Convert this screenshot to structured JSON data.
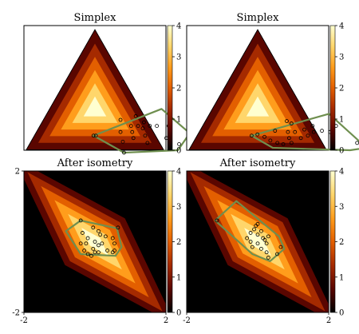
{
  "colormap": [
    "#000000",
    "#5a0600",
    "#a52a00",
    "#e35f00",
    "#ff9d1c",
    "#ffd66b",
    "#ffffd0"
  ],
  "hull_color": "#6f8f4f",
  "point_color": "#000000",
  "chart_data": [
    {
      "type": "heatmap",
      "title": "Simplex",
      "projection": "simplex",
      "value_range": [
        0,
        4
      ],
      "colorbar_ticks": [
        "0",
        "1",
        "2",
        "3",
        "4"
      ],
      "points": [
        [
          0.12,
          0.68
        ],
        [
          0.18,
          0.72
        ],
        [
          0.26,
          0.62
        ],
        [
          0.3,
          0.55
        ],
        [
          0.42,
          0.6
        ],
        [
          0.22,
          0.5
        ],
        [
          0.15,
          0.8
        ],
        [
          0.25,
          0.55
        ],
        [
          0.35,
          0.5
        ],
        [
          0.28,
          0.66
        ],
        [
          0.2,
          0.6
        ],
        [
          0.32,
          0.58
        ],
        [
          0.48,
          0.4
        ],
        [
          0.47,
          0.41
        ],
        [
          0.28,
          0.52
        ],
        [
          0.17,
          0.63
        ],
        [
          0.24,
          0.58
        ],
        [
          0.38,
          0.55
        ],
        [
          0.21,
          0.56
        ],
        [
          0.3,
          0.45
        ]
      ],
      "hull": [
        [
          0.48,
          0.4
        ],
        [
          0.08,
          0.58
        ],
        [
          0.06,
          0.8
        ],
        [
          0.18,
          0.82
        ],
        [
          0.42,
          0.6
        ]
      ]
    },
    {
      "type": "heatmap",
      "title": "Simplex",
      "projection": "simplex",
      "value_range": [
        0,
        4
      ],
      "colorbar_ticks": [
        "0",
        "1",
        "2",
        "3",
        "4"
      ],
      "points": [
        [
          0.1,
          0.7
        ],
        [
          0.42,
          0.52
        ],
        [
          0.3,
          0.6
        ],
        [
          0.35,
          0.55
        ],
        [
          0.18,
          0.66
        ],
        [
          0.25,
          0.58
        ],
        [
          0.45,
          0.44
        ],
        [
          0.5,
          0.38
        ],
        [
          0.28,
          0.5
        ],
        [
          0.4,
          0.55
        ],
        [
          0.22,
          0.63
        ],
        [
          0.47,
          0.4
        ],
        [
          0.38,
          0.46
        ],
        [
          0.3,
          0.55
        ],
        [
          0.2,
          0.6
        ],
        [
          0.44,
          0.48
        ],
        [
          0.33,
          0.52
        ],
        [
          0.26,
          0.62
        ],
        [
          0.36,
          0.58
        ],
        [
          0.29,
          0.47
        ],
        [
          0.15,
          0.7
        ],
        [
          0.08,
          0.86
        ]
      ],
      "hull": [
        [
          0.5,
          0.38
        ],
        [
          0.08,
          0.62
        ],
        [
          0.06,
          0.92
        ],
        [
          0.14,
          0.86
        ],
        [
          0.46,
          0.52
        ]
      ]
    },
    {
      "type": "heatmap",
      "title": "After isometry",
      "projection": "square",
      "value_range": [
        0,
        4
      ],
      "colorbar_ticks": [
        "0",
        "1",
        "2",
        "3",
        "4"
      ],
      "xlim": [
        -2,
        2
      ],
      "ylim": [
        -2,
        2
      ],
      "x_ticks": [
        "-2",
        "2"
      ],
      "y_ticks": [
        "-2",
        "2"
      ],
      "points": [
        [
          -0.4,
          0.6
        ],
        [
          -0.35,
          0.25
        ],
        [
          -0.05,
          0.4
        ],
        [
          0.15,
          0.2
        ],
        [
          0.3,
          0.15
        ],
        [
          -0.2,
          0.1
        ],
        [
          0.0,
          0.0
        ],
        [
          0.5,
          0.1
        ],
        [
          -0.25,
          -0.05
        ],
        [
          0.1,
          -0.1
        ],
        [
          0.55,
          -0.05
        ],
        [
          -0.4,
          -0.05
        ],
        [
          0.35,
          -0.25
        ],
        [
          0.5,
          -0.3
        ],
        [
          0.55,
          -0.25
        ],
        [
          0.1,
          -0.3
        ],
        [
          -0.05,
          -0.2
        ],
        [
          0.2,
          -0.05
        ],
        [
          -0.3,
          -0.25
        ],
        [
          0.0,
          -0.3
        ],
        [
          -0.1,
          -0.4
        ],
        [
          0.65,
          0.4
        ],
        [
          -0.2,
          -0.35
        ],
        [
          0.1,
          0.3
        ]
      ],
      "hull": [
        [
          -0.4,
          0.6
        ],
        [
          -0.82,
          0.3
        ],
        [
          -0.4,
          -0.35
        ],
        [
          0.58,
          -0.4
        ],
        [
          0.75,
          -0.15
        ],
        [
          0.62,
          0.38
        ]
      ]
    },
    {
      "type": "heatmap",
      "title": "After isometry",
      "projection": "square",
      "value_range": [
        0,
        4
      ],
      "colorbar_ticks": [
        "0",
        "1",
        "2",
        "3",
        "4"
      ],
      "xlim": [
        -2,
        2
      ],
      "ylim": [
        -2,
        2
      ],
      "x_ticks": [
        "-2",
        "2"
      ],
      "y_ticks": [
        "-2",
        "2"
      ],
      "points": [
        [
          -1.15,
          0.6
        ],
        [
          0.0,
          0.5
        ],
        [
          -0.1,
          0.35
        ],
        [
          -0.2,
          0.25
        ],
        [
          0.1,
          0.3
        ],
        [
          0.3,
          0.15
        ],
        [
          0.2,
          0.05
        ],
        [
          -0.3,
          0.1
        ],
        [
          0.0,
          -0.05
        ],
        [
          0.25,
          -0.05
        ],
        [
          -0.15,
          -0.15
        ],
        [
          0.1,
          -0.2
        ],
        [
          0.25,
          -0.3
        ],
        [
          -0.2,
          0.0
        ],
        [
          0.15,
          0.1
        ],
        [
          0.0,
          0.2
        ],
        [
          0.55,
          -0.35
        ],
        [
          0.65,
          -0.15
        ],
        [
          0.3,
          -0.45
        ],
        [
          -0.05,
          0.45
        ]
      ],
      "hull": [
        [
          -1.2,
          0.6
        ],
        [
          -0.6,
          1.15
        ],
        [
          0.6,
          0.15
        ],
        [
          0.75,
          -0.2
        ],
        [
          0.35,
          -0.55
        ],
        [
          -0.15,
          -0.35
        ]
      ]
    }
  ]
}
